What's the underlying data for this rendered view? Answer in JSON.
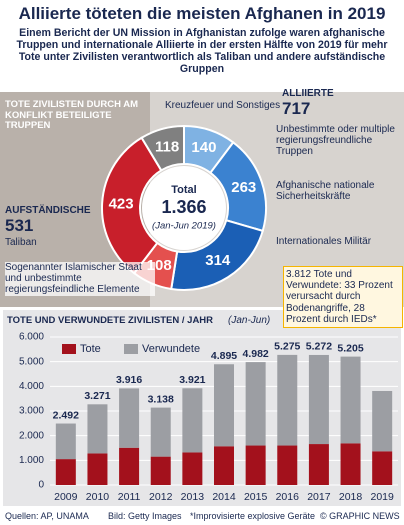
{
  "title": "Alliierte töteten die meisten Afghanen in 2019",
  "subtitle": "Einem Bericht der UN Mission in Afghanistan zufolge waren afghanische Truppen und internationale Alliierte in der ersten Hälfte von 2019 für mehr Tote unter Zivilisten verantwortlich als Taliban und andere aufständische Gruppen",
  "chart_data": [
    {
      "type": "pie",
      "title": "TOTE ZIVILISTEN DURCH AM KONFLIKT BETEILIGTE TRUPPEN",
      "categories": [
        "Unbestimmte oder multiple regierungsfreundliche Truppen",
        "Afghanische nationale Sicherheitskräfte",
        "Internationales Militär",
        "Sogenannter Islamischer Staat und unbestimmte regierungsfeindliche Elemente",
        "Taliban",
        "Kreuzfeuer und Sonstiges"
      ],
      "values": [
        140,
        263,
        314,
        108,
        423,
        118
      ],
      "colors": [
        "#7fb2e3",
        "#3b82d0",
        "#1b5fb5",
        "#e4504e",
        "#c81f2b",
        "#808080"
      ],
      "center_label": "Total",
      "total": 1366,
      "total_label": "1.366",
      "center_note": "(Jan-Jun 2019)",
      "groups": [
        {
          "name": "ALLIIERTE",
          "value": 717
        },
        {
          "name": "AUFSTÄNDISCHE",
          "value": 531
        }
      ]
    },
    {
      "type": "bar",
      "title": "TOTE UND VERWUNDETE ZIVILISTEN / JAHR",
      "subtitle": "(Jan-Jun)",
      "categories": [
        "2009",
        "2010",
        "2011",
        "2012",
        "2013",
        "2014",
        "2015",
        "2016",
        "2017",
        "2018",
        "2019"
      ],
      "series": [
        {
          "name": "Tote",
          "color": "#a3111c",
          "values": [
            1050,
            1280,
            1510,
            1150,
            1320,
            1570,
            1600,
            1600,
            1660,
            1690,
            1366
          ]
        },
        {
          "name": "Verwundete",
          "color": "#9c9ea3",
          "values": [
            1442,
            1991,
            2406,
            1988,
            2601,
            3325,
            3382,
            3675,
            3612,
            3515,
            2446
          ]
        }
      ],
      "totals": [
        2492,
        3271,
        3916,
        3138,
        3921,
        4895,
        4982,
        5275,
        5272,
        5205,
        3812
      ],
      "total_labels": [
        "2.492",
        "3.271",
        "3.916",
        "3.138",
        "3.921",
        "4.895",
        "4.982",
        "5.275",
        "5.272",
        "5.205",
        null
      ],
      "annotation": "3.812 Tote und Verwundete: 33 Prozent verursacht durch Bodenangriffe, 28 Prozent durch IEDs*",
      "ylim": [
        0,
        6000
      ],
      "yticks": [
        0,
        {
          "value": 1000,
          "label": "1.000"
        },
        {
          "value": 2000,
          "label": "2.000"
        },
        {
          "value": 3000,
          "label": "3.000"
        },
        {
          "value": 4000,
          "label": "4.000"
        },
        {
          "value": 5000,
          "label": "5.000"
        },
        {
          "value": 6000,
          "label": "6.000"
        }
      ],
      "grid": true
    }
  ],
  "footer": {
    "source": "Quellen: AP, UNAMA",
    "image": "Bild: Getty Images",
    "note": "*Improvisierte explosive Geräte",
    "copyright": "© GRAPHIC NEWS"
  }
}
